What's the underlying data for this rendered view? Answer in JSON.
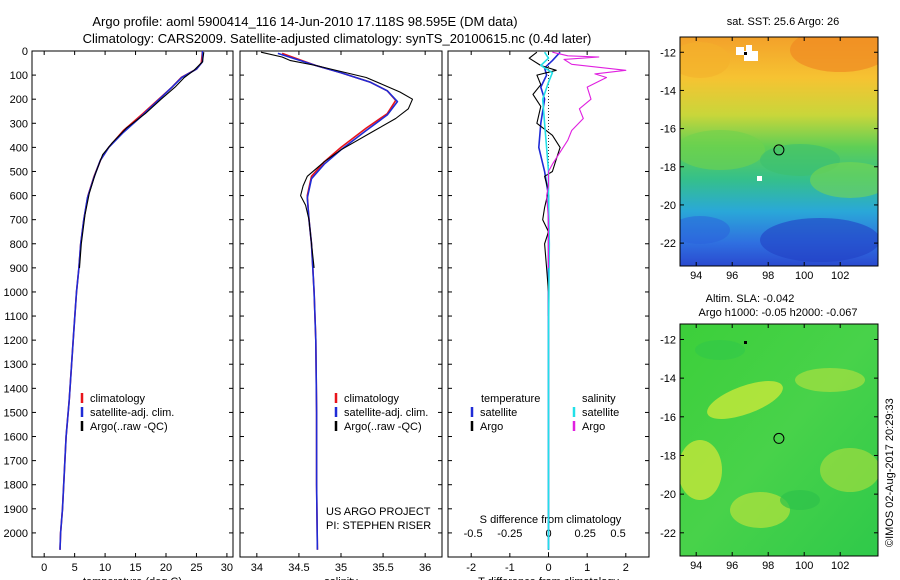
{
  "header": {
    "line1": "Argo profile: aoml 5900414_116 14-Jun-2010 17.118S 98.595E (DM data)",
    "line2": "Climatology: CARS2009. Satellite-adjusted climatology: synTS_20100615.nc (0.4d later)"
  },
  "colors": {
    "climatology": "#e8141b",
    "satellite": "#1f2bd6",
    "argo": "#000000",
    "sat_s": "#22e0e8",
    "argo_s": "#e020e0"
  },
  "chart_data": [
    {
      "type": "line",
      "name": "temperature-profile",
      "xlabel": "temperature (deg C)",
      "xlim": [
        -2,
        31
      ],
      "xticks": [
        0,
        5,
        10,
        15,
        20,
        25,
        30
      ],
      "ylim": [
        2100,
        0
      ],
      "yticks": [
        0,
        100,
        200,
        300,
        400,
        500,
        600,
        700,
        800,
        900,
        1000,
        1100,
        1200,
        1300,
        1400,
        1500,
        1600,
        1700,
        1800,
        1900,
        2000
      ],
      "legend": [
        "climatology",
        "satellite-adj. clim.",
        "Argo(..raw -QC)"
      ],
      "series": [
        {
          "name": "climatology",
          "color": "#e8141b",
          "width": 1.6,
          "points": [
            [
              26,
              0
            ],
            [
              25.8,
              50
            ],
            [
              25,
              75
            ],
            [
              22.5,
              110
            ],
            [
              21,
              150
            ],
            [
              18.8,
              200
            ],
            [
              16.2,
              260
            ],
            [
              13,
              330
            ],
            [
              10.6,
              400
            ],
            [
              9.3,
              450
            ],
            [
              8.2,
              520
            ],
            [
              7.2,
              600
            ],
            [
              6.5,
              700
            ],
            [
              6,
              800
            ],
            [
              5.7,
              900
            ],
            [
              5.3,
              1000
            ],
            [
              4.9,
              1150
            ],
            [
              4.5,
              1300
            ],
            [
              4.1,
              1450
            ],
            [
              3.6,
              1600
            ],
            [
              3.3,
              1750
            ],
            [
              3,
              1900
            ],
            [
              2.7,
              2000
            ],
            [
              2.6,
              2070
            ]
          ]
        },
        {
          "name": "satellite-adj. clim.",
          "color": "#1f2bd6",
          "width": 1.6,
          "points": [
            [
              26,
              0
            ],
            [
              26,
              45
            ],
            [
              25,
              75
            ],
            [
              22.6,
              110
            ],
            [
              21,
              150
            ],
            [
              18.7,
              205
            ],
            [
              16,
              270
            ],
            [
              12.9,
              340
            ],
            [
              10.6,
              400
            ],
            [
              9.2,
              455
            ],
            [
              8.1,
              530
            ],
            [
              7.1,
              610
            ],
            [
              6.5,
              700
            ],
            [
              6,
              800
            ],
            [
              5.7,
              900
            ],
            [
              5.3,
              1000
            ],
            [
              4.9,
              1150
            ],
            [
              4.5,
              1300
            ],
            [
              4.1,
              1450
            ],
            [
              3.6,
              1600
            ],
            [
              3.3,
              1750
            ],
            [
              3,
              1900
            ],
            [
              2.7,
              2000
            ],
            [
              2.6,
              2070
            ]
          ]
        },
        {
          "name": "Argo(..raw -QC)",
          "color": "#000000",
          "width": 1.1,
          "points": [
            [
              26.2,
              5
            ],
            [
              26,
              45
            ],
            [
              24.6,
              80
            ],
            [
              23,
              110
            ],
            [
              21.5,
              150
            ],
            [
              19.2,
              200
            ],
            [
              16.6,
              260
            ],
            [
              13.5,
              320
            ],
            [
              11.2,
              380
            ],
            [
              9.6,
              430
            ],
            [
              8.4,
              510
            ],
            [
              7.4,
              590
            ],
            [
              6.7,
              680
            ],
            [
              6.1,
              800
            ],
            [
              5.8,
              900
            ]
          ]
        }
      ]
    },
    {
      "type": "line",
      "name": "salinity-profile",
      "xlabel": "salinity",
      "xlim": [
        33.8,
        36.2
      ],
      "xticks": [
        34,
        34.5,
        35,
        35.5,
        36
      ],
      "ylim": [
        2100,
        0
      ],
      "legend": [
        "climatology",
        "satellite-adj. clim.",
        "Argo(..raw -QC)"
      ],
      "series": [
        {
          "name": "climatology",
          "color": "#e8141b",
          "width": 1.6,
          "points": [
            [
              34.3,
              10
            ],
            [
              34.7,
              60
            ],
            [
              35.0,
              90
            ],
            [
              35.35,
              130
            ],
            [
              35.55,
              165
            ],
            [
              35.65,
              205
            ],
            [
              35.55,
              260
            ],
            [
              35.3,
              320
            ],
            [
              35.0,
              400
            ],
            [
              34.8,
              460
            ],
            [
              34.65,
              520
            ],
            [
              34.6,
              600
            ],
            [
              34.62,
              700
            ],
            [
              34.65,
              800
            ],
            [
              34.68,
              1000
            ],
            [
              34.7,
              1200
            ],
            [
              34.71,
              1500
            ],
            [
              34.71,
              1800
            ],
            [
              34.72,
              2070
            ]
          ]
        },
        {
          "name": "satellite-adj. clim.",
          "color": "#1f2bd6",
          "width": 1.6,
          "points": [
            [
              34.25,
              10
            ],
            [
              34.7,
              60
            ],
            [
              35.0,
              90
            ],
            [
              35.35,
              130
            ],
            [
              35.55,
              165
            ],
            [
              35.67,
              210
            ],
            [
              35.55,
              265
            ],
            [
              35.3,
              330
            ],
            [
              35.0,
              410
            ],
            [
              34.8,
              470
            ],
            [
              34.65,
              530
            ],
            [
              34.6,
              610
            ],
            [
              34.62,
              700
            ],
            [
              34.65,
              800
            ],
            [
              34.68,
              1000
            ],
            [
              34.7,
              1200
            ],
            [
              34.71,
              1500
            ],
            [
              34.71,
              1800
            ],
            [
              34.72,
              2070
            ]
          ]
        },
        {
          "name": "Argo(..raw -QC)",
          "color": "#000000",
          "width": 1.1,
          "points": [
            [
              34.05,
              5
            ],
            [
              34.3,
              25
            ],
            [
              34.4,
              40
            ],
            [
              34.7,
              60
            ],
            [
              35.0,
              85
            ],
            [
              35.3,
              110
            ],
            [
              35.5,
              140
            ],
            [
              35.7,
              170
            ],
            [
              35.85,
              200
            ],
            [
              35.8,
              240
            ],
            [
              35.65,
              280
            ],
            [
              35.35,
              340
            ],
            [
              35.0,
              410
            ],
            [
              34.8,
              460
            ],
            [
              34.6,
              520
            ],
            [
              34.55,
              560
            ],
            [
              34.52,
              600
            ],
            [
              34.58,
              640
            ],
            [
              34.62,
              700
            ],
            [
              34.65,
              800
            ],
            [
              34.68,
              900
            ]
          ]
        }
      ]
    },
    {
      "type": "line",
      "name": "difference-profile",
      "xlabel": "T difference from climatology",
      "xlabel_top": "S difference from climatology",
      "xlim": [
        -2.6,
        2.6
      ],
      "xticks": [
        -2,
        -1,
        0,
        1,
        2
      ],
      "s_ticks": [
        [
          "-0.5",
          -1.95
        ],
        [
          "-0.25",
          -1.0
        ],
        [
          "0",
          0
        ],
        [
          "0.25",
          0.95
        ],
        [
          "0.5",
          1.8
        ]
      ],
      "ylim": [
        2100,
        0
      ],
      "legend_header": [
        "temperature",
        "salinity"
      ],
      "legend": [
        [
          "satellite",
          "Argo"
        ],
        [
          "satellite",
          "Argo"
        ]
      ],
      "series": [
        {
          "name": "satellite",
          "color": "#1f2bd6",
          "width": 1.6,
          "points": [
            [
              0.3,
              5
            ],
            [
              0.1,
              40
            ],
            [
              -0.1,
              70
            ],
            [
              -0.05,
              100
            ],
            [
              -0.2,
              150
            ],
            [
              -0.1,
              200
            ],
            [
              -0.2,
              300
            ],
            [
              -0.25,
              400
            ],
            [
              -0.1,
              500
            ],
            [
              0,
              600
            ],
            [
              0,
              800
            ],
            [
              0,
              1500
            ],
            [
              0,
              2070
            ]
          ]
        },
        {
          "name": "Argo",
          "color": "#000000",
          "width": 1.1,
          "points": [
            [
              -0.3,
              5
            ],
            [
              -0.5,
              30
            ],
            [
              -0.2,
              60
            ],
            [
              0.2,
              80
            ],
            [
              -0.3,
              100
            ],
            [
              -0.2,
              140
            ],
            [
              -0.4,
              180
            ],
            [
              -0.2,
              230
            ],
            [
              -0.3,
              300
            ],
            [
              0.1,
              350
            ],
            [
              0.3,
              400
            ],
            [
              0.2,
              450
            ],
            [
              0.1,
              500
            ],
            [
              -0.1,
              520
            ],
            [
              0,
              580
            ],
            [
              -0.1,
              650
            ],
            [
              -0.15,
              700
            ],
            [
              0,
              750
            ],
            [
              -0.1,
              800
            ],
            [
              -0.05,
              900
            ],
            [
              0,
              1000
            ],
            [
              0,
              1100
            ]
          ]
        },
        {
          "name": "satellite",
          "color": "#22e0e8",
          "width": 1.6,
          "points": [
            [
              -0.1,
              5
            ],
            [
              0,
              30
            ],
            [
              -0.2,
              60
            ],
            [
              0.1,
              90
            ],
            [
              0,
              130
            ],
            [
              -0.15,
              200
            ],
            [
              -0.1,
              300
            ],
            [
              -0.05,
              400
            ],
            [
              0,
              500
            ],
            [
              0,
              600
            ],
            [
              0.02,
              800
            ],
            [
              0,
              1200
            ],
            [
              0,
              2070
            ]
          ]
        },
        {
          "name": "Argo",
          "color": "#e020e0",
          "width": 1.1,
          "points": [
            [
              0.1,
              5
            ],
            [
              0.5,
              20
            ],
            [
              1.3,
              25
            ],
            [
              0.4,
              35
            ],
            [
              0.6,
              55
            ],
            [
              2.0,
              80
            ],
            [
              1.2,
              95
            ],
            [
              1.5,
              110
            ],
            [
              1.0,
              150
            ],
            [
              1.1,
              200
            ],
            [
              0.8,
              240
            ],
            [
              0.9,
              280
            ],
            [
              0.6,
              330
            ],
            [
              0.5,
              370
            ],
            [
              0.3,
              420
            ],
            [
              0.1,
              470
            ],
            [
              0,
              500
            ],
            [
              0,
              560
            ],
            [
              -0.05,
              600
            ],
            [
              0,
              700
            ],
            [
              0,
              800
            ],
            [
              0,
              900
            ]
          ]
        }
      ]
    },
    {
      "type": "heatmap",
      "name": "sst-map",
      "title": "sat. SST: 25.6 Argo: 26",
      "xticks": [
        94,
        96,
        98,
        100,
        102
      ],
      "yticks": [
        -12,
        -14,
        -16,
        -18,
        -20,
        -22
      ],
      "xlim": [
        93.1,
        104.1
      ],
      "ylim": [
        -23.2,
        -11.2
      ],
      "marker": [
        98.595,
        -17.118
      ]
    },
    {
      "type": "heatmap",
      "name": "sla-map",
      "title": "Altim. SLA: -0.042",
      "subtitle": "Argo h1000: -0.05 h2000: -0.067",
      "xticks": [
        94,
        96,
        98,
        100,
        102
      ],
      "yticks": [
        -12,
        -14,
        -16,
        -18,
        -20,
        -22
      ],
      "xlim": [
        93.1,
        104.1
      ],
      "ylim": [
        -23.2,
        -11.2
      ],
      "marker": [
        98.595,
        -17.118
      ]
    }
  ],
  "annotations": {
    "project": "US ARGO PROJECT",
    "pi": "PI: STEPHEN RISER",
    "footer": "©IMOS 02-Aug-2017 20:29:33"
  }
}
